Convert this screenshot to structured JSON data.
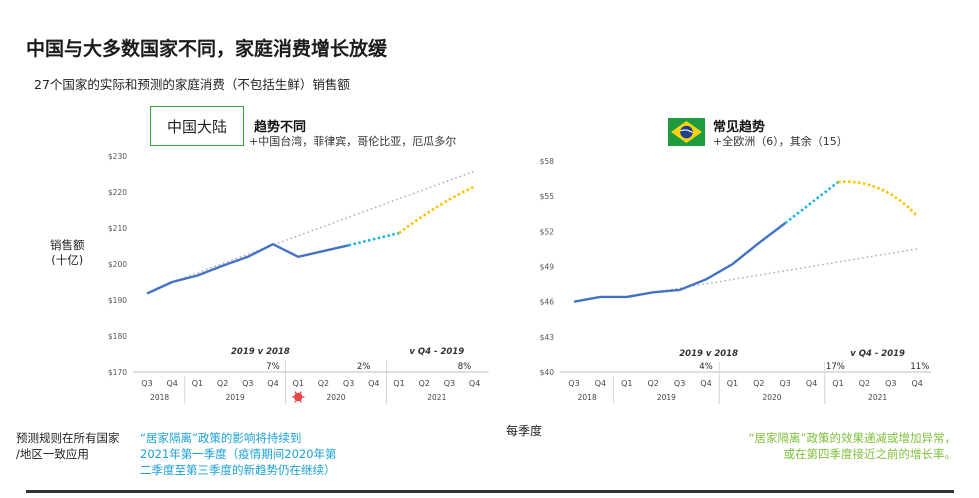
{
  "page": {
    "title": "中国与大多数国家不同，家庭消费增长放缓",
    "subtitle": "27个国家的实际和预测的家庭消费（不包括生鲜）销售额",
    "ylabel_line1": "销售额",
    "ylabel_line2": "(十亿)",
    "x_caption": "每季度",
    "note_left_1": "预测规则在所有国家",
    "note_left_2": "/地区一致应用",
    "note_mid_1": "“居家隔离”政策的影响将持续到",
    "note_mid_2": "2021年第一季度（疫情期间2020年第",
    "note_mid_3": "二季度至第三季度的新趋势仍在继续）",
    "note_right_1": "“居家隔离”政策的效果递减或增加异常，",
    "note_right_2": "或在第四季度接近之前的增长率。"
  },
  "left_header": {
    "box_label": "中国大陆",
    "title": "趋势不同",
    "sub": "+中国台湾，菲律宾，哥伦比亚，厄瓜多尔"
  },
  "right_header": {
    "flag_icon": "brazil-flag-icon",
    "title": "常见趋势",
    "sub": "+全欧洲（6），其余（15）"
  },
  "colors": {
    "actual": "#4472c4",
    "bridge": "#1fb3e5",
    "forecast": "#ffc000",
    "trend": "#a6a6a6",
    "grid": "#d9d9d9"
  },
  "chart_data": [
    {
      "type": "line",
      "title": "中国大陆",
      "categories": [
        "Q3",
        "Q4",
        "Q1",
        "Q2",
        "Q3",
        "Q4",
        "Q1",
        "Q2",
        "Q3",
        "Q4",
        "Q1",
        "Q2",
        "Q3",
        "Q4"
      ],
      "years": [
        {
          "label": "2018",
          "span": 2
        },
        {
          "label": "2019",
          "span": 4
        },
        {
          "label": "2020",
          "span": 4
        },
        {
          "label": "2021",
          "span": 4
        }
      ],
      "yticks": [
        "$170",
        "$180",
        "$190",
        "$200",
        "$210",
        "$220",
        "$230"
      ],
      "ylim": [
        170,
        230
      ],
      "actual": [
        191.8,
        195.0,
        196.8,
        199.5,
        202.0,
        205.5,
        202.0,
        203.6,
        205.2
      ],
      "bridge": [
        [
          8,
          205.2
        ],
        [
          10,
          208.6
        ]
      ],
      "forecast": [
        [
          10,
          208.6
        ],
        [
          13,
          221.5
        ]
      ],
      "trend": [
        [
          1,
          195.0
        ],
        [
          13,
          225.8
        ]
      ],
      "annotations": {
        "compare_left": "2019 v 2018",
        "compare_right": "v Q4 - 2019",
        "pct_1": "7%",
        "pct_2": "2%",
        "pct_3": "8%"
      }
    },
    {
      "type": "line",
      "title": "常见趋势",
      "categories": [
        "Q3",
        "Q4",
        "Q1",
        "Q2",
        "Q3",
        "Q4",
        "Q1",
        "Q2",
        "Q3",
        "Q4",
        "Q1",
        "Q2",
        "Q3",
        "Q4"
      ],
      "years": [
        {
          "label": "2018",
          "span": 2
        },
        {
          "label": "2019",
          "span": 4
        },
        {
          "label": "2020",
          "span": 4
        },
        {
          "label": "2021",
          "span": 4
        }
      ],
      "yticks": [
        "$40",
        "$43",
        "$46",
        "$49",
        "$52",
        "$55",
        "$58"
      ],
      "ylim": [
        40,
        58
      ],
      "actual": [
        46.0,
        46.4,
        46.4,
        46.8,
        47.0,
        47.9,
        49.2,
        51.0,
        52.7
      ],
      "bridge": [
        [
          8,
          52.7
        ],
        [
          10,
          56.2
        ]
      ],
      "forecast": [
        [
          10,
          56.2
        ],
        [
          13,
          53.3
        ]
      ],
      "trend": [
        [
          2,
          46.4
        ],
        [
          13,
          50.5
        ]
      ],
      "annotations": {
        "compare_left": "2019 v 2018",
        "compare_right": "v Q4 - 2019",
        "pct_1": "4%",
        "pct_2": "17%",
        "pct_3": "11%"
      }
    }
  ]
}
